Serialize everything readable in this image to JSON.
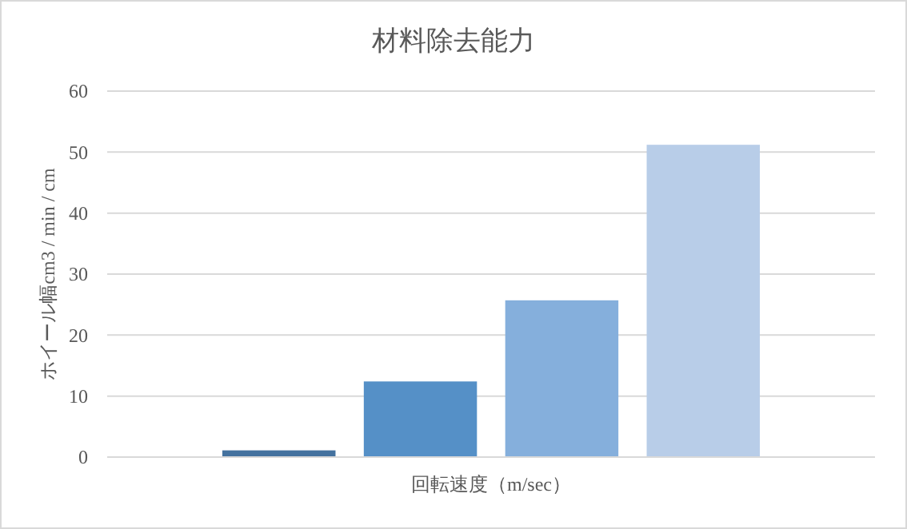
{
  "chart_data": {
    "type": "bar",
    "title": "材料除去能力",
    "xlabel": "回転速度（m/sec）",
    "ylabel": "ホイール幅cm3 / min / cm",
    "categories": [
      null
    ],
    "series": [
      {
        "color": "#44729f",
        "values": [
          1.1
        ]
      },
      {
        "color": "#5590c7",
        "values": [
          12.4
        ]
      },
      {
        "color": "#85afdc",
        "values": [
          25.7
        ]
      },
      {
        "color": "#b8cde8",
        "values": [
          51.2
        ]
      }
    ],
    "ylim": [
      0,
      60
    ],
    "yticks": [
      0,
      10,
      20,
      30,
      40,
      50,
      60
    ],
    "grid": "y"
  }
}
